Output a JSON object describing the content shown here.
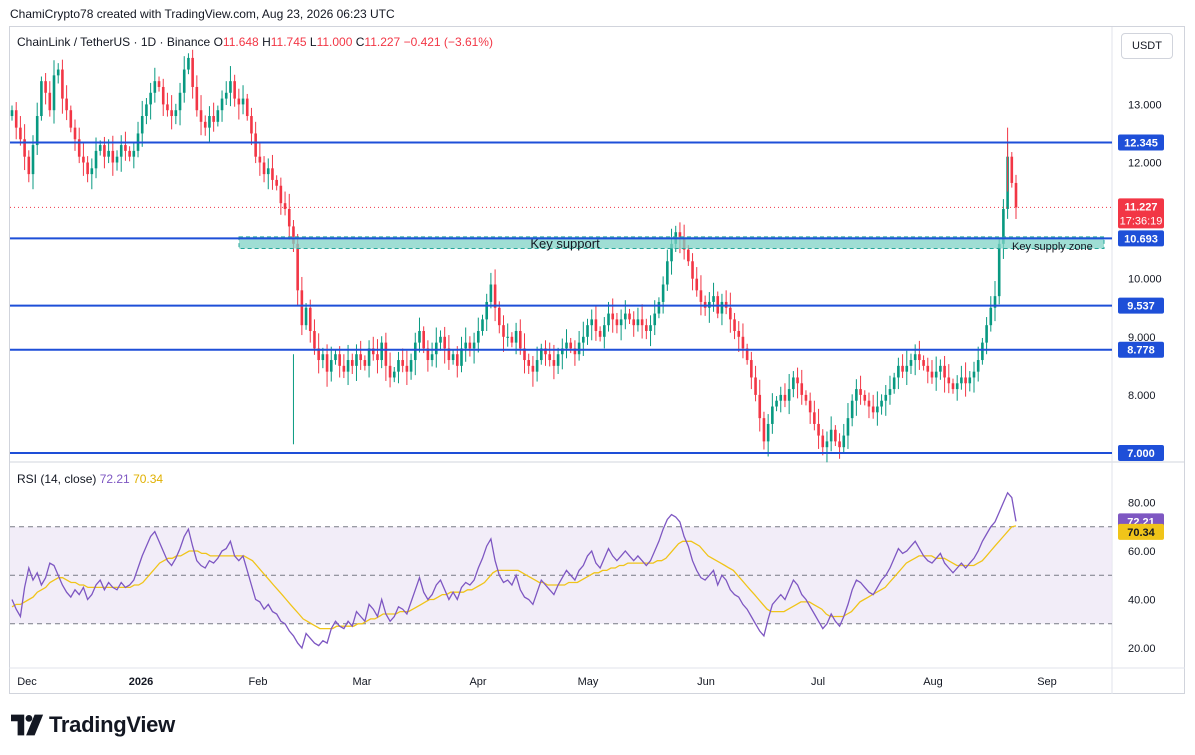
{
  "header": {
    "attribution": "ChamiCrypto78 created with TradingView.com, Aug 23, 2026 06:23 UTC"
  },
  "legend": {
    "symbol": "ChainLink / TetherUS · 1D · Binance",
    "o_label": "O",
    "o_value": "11.648",
    "h_label": "H",
    "h_value": "11.745",
    "l_label": "L",
    "l_value": "11.000",
    "c_label": "C",
    "c_value": "11.227",
    "change": "−0.421 (−3.61%)"
  },
  "currency": "USDT",
  "rsi_legend": {
    "label": "RSI (14, close)",
    "rsi_value": "72.21",
    "ma_value": "70.34"
  },
  "logo": {
    "text": "TradingView",
    "icon": "tradingview-logo-icon"
  },
  "colors": {
    "up": "#089981",
    "down": "#f23645",
    "level_line": "#1e4fd8",
    "zone_fill": "#7fd3c6",
    "rsi_line": "#7e57c2",
    "rsi_ma": "#f0c419",
    "rsi_band": "#ede7f6"
  },
  "chart_data": [
    {
      "type": "candlestick",
      "symbol": "ChainLink / TetherUS",
      "x_labels": [
        "Dec",
        "2026",
        "Feb",
        "Mar",
        "Apr",
        "May",
        "Jun",
        "Jul",
        "Aug",
        "Sep"
      ],
      "y_ticks": [
        7.0,
        8.0,
        9.0,
        10.0,
        12.0,
        13.0
      ],
      "y_tick_labels": [
        "8.000",
        "9.000",
        "10.000",
        "12.000",
        "13.000"
      ],
      "horizontal_levels": [
        {
          "label": "12.345",
          "value": 12.345
        },
        {
          "label": "10.693",
          "value": 10.693
        },
        {
          "label": "9.537",
          "value": 9.537
        },
        {
          "label": "8.778",
          "value": 8.778
        },
        {
          "label": "7.000",
          "value": 7.0
        }
      ],
      "zones": [
        {
          "label": "Key support",
          "from": 10.52,
          "to": 10.72,
          "start": "Jan 28",
          "end": "Aug 22"
        },
        {
          "label": "Key supply zone",
          "from": 10.52,
          "to": 10.72
        }
      ],
      "last_price": {
        "value": 11.227,
        "label": "11.227",
        "countdown": "17:36:19"
      },
      "ohlc_last": {
        "open": 11.648,
        "high": 11.745,
        "low": 11.0,
        "close": 11.227
      },
      "series": [
        {
          "name": "closes",
          "dates_start": "2025-11-29",
          "values": [
            12.9,
            12.6,
            12.4,
            12.1,
            11.8,
            12.3,
            12.8,
            13.4,
            13.2,
            12.9,
            13.5,
            13.6,
            13.1,
            12.9,
            12.6,
            12.4,
            12.1,
            12.0,
            11.8,
            11.9,
            12.2,
            12.3,
            12.1,
            12.2,
            12.0,
            12.1,
            12.3,
            12.2,
            12.1,
            12.2,
            12.5,
            12.8,
            13.0,
            13.2,
            13.4,
            13.3,
            13.0,
            12.9,
            12.8,
            12.9,
            13.2,
            13.6,
            13.8,
            13.3,
            12.9,
            12.7,
            12.6,
            12.8,
            12.7,
            12.9,
            13.1,
            13.2,
            13.4,
            13.1,
            13.0,
            13.1,
            12.8,
            12.5,
            12.1,
            12.0,
            11.8,
            11.9,
            11.7,
            11.6,
            11.3,
            11.2,
            10.9,
            10.6,
            9.8,
            9.2,
            9.5,
            9.1,
            8.8,
            8.6,
            8.7,
            8.4,
            8.6,
            8.7,
            8.5,
            8.4,
            8.6,
            8.5,
            8.7,
            8.6,
            8.5,
            8.8,
            8.7,
            8.6,
            8.9,
            8.5,
            8.3,
            8.4,
            8.6,
            8.5,
            8.4,
            8.6,
            8.9,
            9.1,
            8.8,
            8.6,
            8.7,
            8.9,
            9.0,
            8.8,
            8.6,
            8.7,
            8.5,
            8.8,
            8.9,
            8.8,
            8.9,
            9.1,
            9.3,
            9.6,
            9.9,
            9.5,
            9.2,
            9.0,
            9.0,
            8.9,
            9.1,
            8.8,
            8.6,
            8.5,
            8.4,
            8.6,
            8.8,
            8.7,
            8.6,
            8.5,
            8.7,
            8.8,
            8.9,
            8.8,
            8.7,
            8.9,
            9.0,
            9.2,
            9.3,
            9.1,
            9.0,
            9.2,
            9.4,
            9.3,
            9.2,
            9.3,
            9.4,
            9.3,
            9.2,
            9.3,
            9.2,
            9.1,
            9.2,
            9.4,
            9.6,
            9.9,
            10.3,
            10.6,
            10.8,
            10.7,
            10.5,
            10.3,
            10.0,
            9.8,
            9.6,
            9.5,
            9.6,
            9.7,
            9.4,
            9.6,
            9.5,
            9.3,
            9.1,
            9.0,
            8.8,
            8.6,
            8.3,
            8.0,
            7.6,
            7.2,
            7.5,
            7.8,
            7.9,
            8.0,
            7.9,
            8.1,
            8.3,
            8.2,
            8.0,
            7.9,
            7.7,
            7.5,
            7.3,
            7.1,
            7.2,
            7.4,
            7.2,
            7.1,
            7.3,
            7.6,
            7.9,
            8.1,
            8.0,
            7.9,
            7.8,
            7.7,
            7.8,
            7.9,
            8.0,
            8.1,
            8.3,
            8.5,
            8.4,
            8.5,
            8.6,
            8.7,
            8.6,
            8.5,
            8.4,
            8.3,
            8.4,
            8.5,
            8.3,
            8.2,
            8.1,
            8.2,
            8.3,
            8.2,
            8.3,
            8.4,
            8.6,
            8.9,
            9.2,
            9.5,
            9.7,
            10.6,
            11.2,
            12.1,
            11.648,
            11.227
          ]
        }
      ]
    },
    {
      "type": "line",
      "title": "RSI (14, close)",
      "y_ticks": [
        20,
        40,
        60,
        80
      ],
      "y_tick_labels": [
        "20.00",
        "40.00",
        "60.00",
        "80.00"
      ],
      "bands": {
        "upper": 70,
        "middle": 50,
        "lower": 30
      },
      "last": {
        "rsi": 72.21,
        "ma": 70.34
      },
      "series": [
        {
          "name": "RSI",
          "values": [
            40,
            36,
            33,
            45,
            53,
            48,
            51,
            46,
            49,
            55,
            54,
            50,
            46,
            43,
            41,
            44,
            42,
            45,
            40,
            42,
            46,
            48,
            44,
            47,
            45,
            44,
            47,
            45,
            46,
            48,
            53,
            58,
            62,
            66,
            68,
            64,
            60,
            56,
            54,
            57,
            61,
            66,
            69,
            62,
            56,
            54,
            53,
            56,
            55,
            57,
            60,
            61,
            64,
            58,
            56,
            58,
            52,
            46,
            40,
            39,
            36,
            38,
            35,
            34,
            31,
            30,
            27,
            25,
            22,
            20,
            26,
            24,
            22,
            21,
            23,
            22,
            28,
            31,
            29,
            28,
            31,
            29,
            35,
            33,
            31,
            38,
            36,
            33,
            40,
            34,
            31,
            33,
            37,
            36,
            34,
            39,
            44,
            49,
            43,
            40,
            42,
            46,
            48,
            44,
            40,
            43,
            40,
            45,
            47,
            46,
            48,
            53,
            57,
            62,
            65,
            56,
            50,
            47,
            48,
            46,
            50,
            44,
            41,
            40,
            38,
            43,
            48,
            46,
            44,
            42,
            46,
            49,
            52,
            50,
            48,
            52,
            54,
            58,
            60,
            55,
            53,
            57,
            61,
            58,
            56,
            58,
            60,
            58,
            56,
            58,
            56,
            54,
            56,
            60,
            64,
            69,
            73,
            75,
            74,
            72,
            66,
            62,
            56,
            52,
            49,
            48,
            50,
            52,
            46,
            50,
            48,
            44,
            42,
            41,
            38,
            36,
            33,
            30,
            27,
            25,
            32,
            38,
            40,
            42,
            40,
            44,
            48,
            46,
            42,
            40,
            37,
            34,
            31,
            28,
            30,
            34,
            31,
            29,
            33,
            38,
            44,
            48,
            47,
            45,
            43,
            42,
            45,
            48,
            50,
            53,
            57,
            61,
            59,
            60,
            62,
            64,
            61,
            58,
            56,
            55,
            57,
            59,
            55,
            53,
            51,
            53,
            55,
            53,
            55,
            57,
            60,
            64,
            67,
            70,
            72,
            76,
            80,
            84,
            82,
            72.21
          ]
        },
        {
          "name": "RSI MA",
          "values": [
            37,
            38,
            38,
            39,
            40,
            41,
            43,
            44,
            45,
            47,
            48,
            49,
            49,
            48,
            47,
            47,
            46,
            46,
            45,
            45,
            45,
            45,
            45,
            45,
            45,
            45,
            45,
            45,
            45,
            46,
            46,
            47,
            49,
            51,
            53,
            55,
            56,
            57,
            57,
            58,
            58,
            59,
            60,
            60,
            60,
            59,
            59,
            58,
            58,
            58,
            58,
            58,
            58,
            58,
            58,
            58,
            57,
            56,
            54,
            52,
            50,
            48,
            46,
            44,
            42,
            40,
            38,
            36,
            34,
            32,
            31,
            30,
            29,
            28,
            28,
            28,
            28,
            29,
            29,
            29,
            29,
            29,
            30,
            30,
            31,
            32,
            32,
            33,
            34,
            34,
            34,
            34,
            35,
            35,
            35,
            36,
            37,
            38,
            39,
            40,
            40,
            41,
            42,
            42,
            43,
            43,
            43,
            43,
            44,
            44,
            45,
            46,
            47,
            49,
            51,
            52,
            52,
            52,
            52,
            52,
            52,
            51,
            50,
            49,
            48,
            47,
            47,
            46,
            46,
            46,
            46,
            46,
            47,
            47,
            47,
            48,
            49,
            50,
            51,
            51,
            52,
            52,
            53,
            53,
            54,
            54,
            55,
            55,
            55,
            55,
            55,
            55,
            55,
            56,
            56,
            57,
            59,
            61,
            63,
            64,
            64,
            64,
            63,
            62,
            60,
            58,
            57,
            56,
            55,
            54,
            53,
            52,
            50,
            48,
            46,
            44,
            42,
            40,
            38,
            36,
            35,
            35,
            35,
            35,
            36,
            37,
            38,
            39,
            39,
            39,
            38,
            37,
            36,
            34,
            33,
            33,
            33,
            33,
            34,
            35,
            37,
            39,
            40,
            41,
            42,
            43,
            44,
            45,
            47,
            49,
            51,
            53,
            55,
            56,
            57,
            58,
            58,
            58,
            58,
            57,
            57,
            57,
            56,
            55,
            54,
            54,
            54,
            54,
            54,
            55,
            56,
            58,
            60,
            62,
            64,
            66,
            68,
            70,
            70.34
          ]
        }
      ]
    }
  ]
}
